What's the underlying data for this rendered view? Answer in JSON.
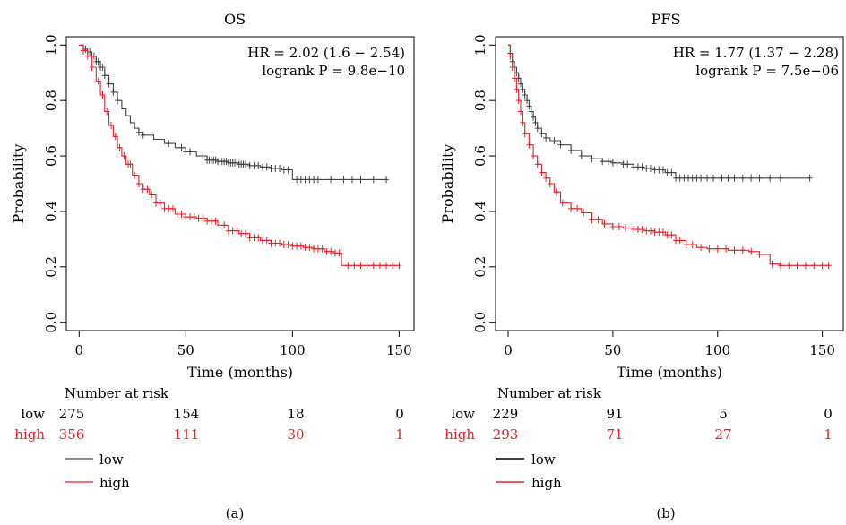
{
  "colors": {
    "low": "#444444",
    "high": "#e8202a",
    "axis": "#000000"
  },
  "chart_data": [
    {
      "type": "line",
      "title": "OS",
      "panel_label": "(a)",
      "xlabel": "Time (months)",
      "ylabel": "Probability",
      "xlim": [
        -6,
        157
      ],
      "ylim": [
        -0.03,
        1.03
      ],
      "xticks": [
        0,
        50,
        100,
        150
      ],
      "yticks": [
        0.0,
        0.2,
        0.4,
        0.6,
        0.8,
        1.0
      ],
      "ytick_labels": [
        "0.0",
        "0.2",
        "0.4",
        "0.6",
        "0.8",
        "1.0"
      ],
      "annotation": [
        "HR = 2.02 (1.6 − 2.54)",
        "logrank P = 9.8e−10"
      ],
      "risk_table": {
        "title": "Number at risk",
        "times": [
          0,
          50,
          100,
          150
        ],
        "rows": [
          {
            "group": "low",
            "counts": [
              "275",
              "154",
              "18",
              "0"
            ]
          },
          {
            "group": "high",
            "counts": [
              "356",
              "111",
              "30",
              "1"
            ]
          }
        ]
      },
      "legend": [
        {
          "name": "low"
        },
        {
          "name": "high"
        }
      ],
      "series": [
        {
          "name": "low",
          "x": [
            0,
            2,
            4,
            6,
            8,
            10,
            12,
            14,
            16,
            18,
            20,
            22,
            24,
            26,
            28,
            30,
            35,
            40,
            45,
            50,
            55,
            60,
            65,
            70,
            75,
            80,
            85,
            90,
            95,
            100,
            144
          ],
          "y": [
            1.0,
            0.985,
            0.975,
            0.96,
            0.94,
            0.92,
            0.89,
            0.86,
            0.83,
            0.8,
            0.77,
            0.745,
            0.72,
            0.7,
            0.685,
            0.675,
            0.66,
            0.645,
            0.63,
            0.615,
            0.6,
            0.585,
            0.58,
            0.575,
            0.57,
            0.565,
            0.56,
            0.555,
            0.55,
            0.515,
            0.515
          ],
          "censor_x": [
            3,
            5,
            7,
            8,
            9,
            10,
            11,
            12,
            14,
            16,
            18,
            28,
            30,
            42,
            48,
            50,
            52,
            58,
            60,
            61,
            62,
            63,
            64,
            65,
            66,
            67,
            68,
            69,
            70,
            71,
            72,
            73,
            74,
            75,
            76,
            77,
            78,
            80,
            82,
            84,
            86,
            88,
            90,
            92,
            94,
            96,
            98,
            102,
            104,
            106,
            108,
            110,
            112,
            118,
            124,
            128,
            132,
            138,
            144
          ]
        },
        {
          "name": "high",
          "x": [
            0,
            2,
            4,
            6,
            8,
            10,
            12,
            14,
            16,
            18,
            20,
            22,
            25,
            28,
            30,
            33,
            36,
            40,
            45,
            50,
            55,
            60,
            65,
            70,
            75,
            80,
            85,
            90,
            95,
            100,
            105,
            110,
            115,
            120,
            123,
            150
          ],
          "y": [
            1.0,
            0.98,
            0.96,
            0.92,
            0.87,
            0.82,
            0.76,
            0.71,
            0.67,
            0.63,
            0.6,
            0.57,
            0.53,
            0.5,
            0.48,
            0.46,
            0.43,
            0.41,
            0.39,
            0.38,
            0.375,
            0.365,
            0.35,
            0.33,
            0.32,
            0.305,
            0.295,
            0.285,
            0.28,
            0.275,
            0.27,
            0.265,
            0.255,
            0.25,
            0.205,
            0.205
          ],
          "censor_x": [
            2,
            4,
            6,
            9,
            11,
            13,
            15,
            17,
            19,
            21,
            23,
            24,
            26,
            28,
            30,
            32,
            34,
            36,
            38,
            40,
            42,
            44,
            46,
            48,
            50,
            52,
            54,
            56,
            58,
            60,
            62,
            64,
            66,
            68,
            70,
            72,
            74,
            76,
            78,
            80,
            82,
            84,
            86,
            88,
            90,
            92,
            94,
            96,
            98,
            100,
            102,
            104,
            106,
            108,
            110,
            112,
            114,
            116,
            118,
            120,
            122,
            126,
            129,
            132,
            135,
            138,
            141,
            144,
            147,
            150
          ]
        }
      ]
    },
    {
      "type": "line",
      "title": "PFS",
      "panel_label": "(b)",
      "xlabel": "Time (months)",
      "ylabel": "Probability",
      "xlim": [
        -6,
        160
      ],
      "ylim": [
        -0.03,
        1.03
      ],
      "xticks": [
        0,
        50,
        100,
        150
      ],
      "yticks": [
        0.0,
        0.2,
        0.4,
        0.6,
        0.8,
        1.0
      ],
      "ytick_labels": [
        "0.0",
        "0.2",
        "0.4",
        "0.6",
        "0.8",
        "1.0"
      ],
      "annotation": [
        "HR = 1.77 (1.37 − 2.28)",
        "logrank P = 7.5e−06"
      ],
      "risk_table": {
        "title": "Number at risk",
        "times": [
          0,
          50,
          100,
          150
        ],
        "rows": [
          {
            "group": "low",
            "counts": [
              "229",
              "91",
              "5",
              "0"
            ]
          },
          {
            "group": "high",
            "counts": [
              "293",
              "71",
              "27",
              "1"
            ]
          }
        ]
      },
      "legend": [
        {
          "name": "low"
        },
        {
          "name": "high"
        }
      ],
      "series": [
        {
          "name": "low",
          "x": [
            0,
            1,
            2,
            3,
            4,
            5,
            6,
            7,
            8,
            9,
            10,
            11,
            12,
            13,
            14,
            16,
            18,
            20,
            25,
            30,
            35,
            40,
            45,
            50,
            55,
            60,
            65,
            70,
            75,
            80,
            85,
            100,
            144
          ],
          "y": [
            1.0,
            0.97,
            0.94,
            0.92,
            0.9,
            0.88,
            0.86,
            0.84,
            0.82,
            0.8,
            0.78,
            0.76,
            0.74,
            0.72,
            0.7,
            0.68,
            0.665,
            0.655,
            0.64,
            0.62,
            0.6,
            0.59,
            0.58,
            0.575,
            0.57,
            0.56,
            0.555,
            0.55,
            0.54,
            0.52,
            0.52,
            0.52,
            0.52
          ],
          "censor_x": [
            1,
            2,
            3,
            4,
            5,
            6,
            7,
            8,
            9,
            10,
            11,
            12,
            13,
            14,
            16,
            18,
            22,
            25,
            30,
            35,
            40,
            45,
            48,
            50,
            52,
            55,
            57,
            60,
            62,
            64,
            66,
            68,
            70,
            72,
            74,
            76,
            78,
            80,
            82,
            84,
            86,
            88,
            90,
            92,
            95,
            98,
            102,
            105,
            108,
            112,
            116,
            120,
            125,
            130,
            144
          ]
        },
        {
          "name": "high",
          "x": [
            0,
            1,
            2,
            3,
            4,
            5,
            6,
            7,
            8,
            10,
            12,
            14,
            16,
            18,
            20,
            22,
            25,
            30,
            35,
            40,
            45,
            50,
            55,
            60,
            65,
            70,
            75,
            80,
            85,
            90,
            95,
            100,
            105,
            110,
            115,
            120,
            125,
            130,
            153
          ],
          "y": [
            1.0,
            0.96,
            0.92,
            0.88,
            0.84,
            0.8,
            0.76,
            0.72,
            0.68,
            0.64,
            0.6,
            0.57,
            0.54,
            0.52,
            0.5,
            0.47,
            0.43,
            0.41,
            0.395,
            0.37,
            0.355,
            0.345,
            0.34,
            0.335,
            0.33,
            0.325,
            0.315,
            0.295,
            0.28,
            0.27,
            0.265,
            0.265,
            0.26,
            0.26,
            0.255,
            0.245,
            0.21,
            0.205,
            0.205
          ],
          "censor_x": [
            1,
            2,
            3,
            4,
            5,
            6,
            7,
            8,
            10,
            12,
            14,
            16,
            18,
            20,
            23,
            26,
            30,
            33,
            36,
            40,
            43,
            46,
            50,
            53,
            56,
            60,
            62,
            64,
            66,
            68,
            70,
            72,
            74,
            76,
            78,
            80,
            82,
            85,
            88,
            92,
            96,
            100,
            104,
            108,
            112,
            116,
            120,
            126,
            130,
            134,
            138,
            142,
            146,
            150,
            153
          ]
        }
      ]
    }
  ]
}
